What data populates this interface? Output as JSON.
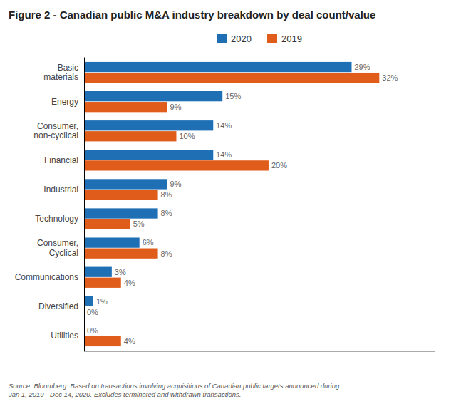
{
  "chart_data": {
    "type": "bar",
    "orientation": "horizontal",
    "title": "Figure 2 - Canadian public M&A industry breakdown by deal count/value",
    "categories": [
      "Basic\nmaterials",
      "Energy",
      "Consumer,\nnon-cyclical",
      "Financial",
      "Industrial",
      "Technology",
      "Consumer,\nCyclical",
      "Communications",
      "Diversified",
      "Utilities"
    ],
    "series": [
      {
        "name": "2020",
        "color": "#1f6fb5",
        "values": [
          29,
          15,
          14,
          14,
          9,
          8,
          6,
          3,
          1,
          0
        ],
        "value_labels": [
          "29%",
          "15%",
          "14%",
          "14%",
          "9%",
          "8%",
          "6%",
          "3%",
          "1%",
          "0%"
        ]
      },
      {
        "name": "2019",
        "color": "#e05c1a",
        "values": [
          32,
          9,
          10,
          20,
          8,
          5,
          8,
          4,
          0,
          4
        ],
        "value_labels": [
          "32%",
          "9%",
          "10%",
          "20%",
          "8%",
          "5%",
          "8%",
          "4%",
          "0%",
          "4%"
        ]
      }
    ],
    "xlim": [
      0,
      38
    ],
    "tick_labels": "y",
    "data_labels": true,
    "grid": false,
    "legend": "top",
    "annotations": [
      "Source: Bloomberg. Based on transactions involving acquisitions of Canadian public targets announced during\nJan 1, 2019 - Dec 14, 2020. Excludes terminated and withdrawn transactions."
    ]
  }
}
